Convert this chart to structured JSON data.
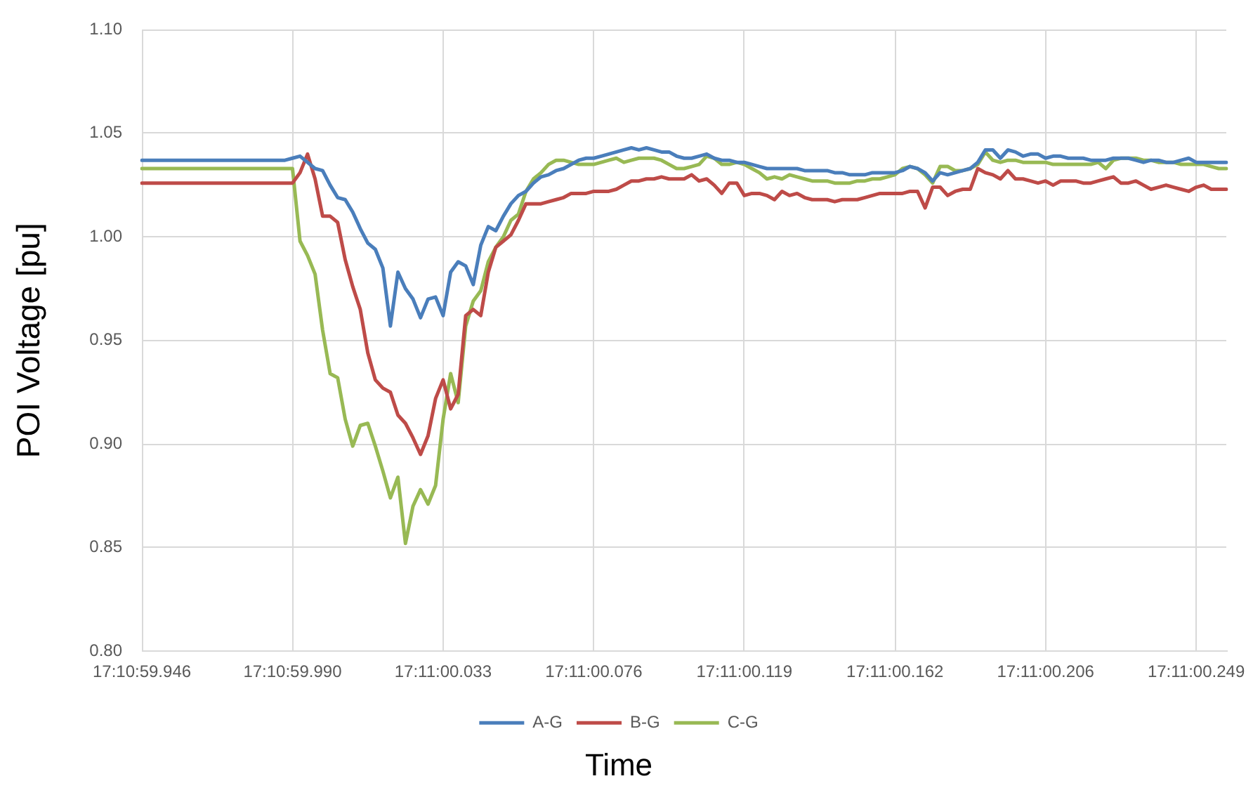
{
  "chart_data": {
    "type": "line",
    "xlabel": "Time",
    "ylabel": "POI Voltage [pu]",
    "categories": [
      "17:10:59.946",
      null,
      null,
      null,
      null,
      null,
      null,
      null,
      null,
      null,
      null,
      null,
      null,
      null,
      null,
      null,
      null,
      null,
      null,
      null,
      "17:10:59.990",
      null,
      null,
      null,
      null,
      null,
      null,
      null,
      null,
      null,
      null,
      null,
      null,
      null,
      null,
      null,
      null,
      null,
      null,
      null,
      "17:11:00.033",
      null,
      null,
      null,
      null,
      null,
      null,
      null,
      null,
      null,
      null,
      null,
      null,
      null,
      null,
      null,
      null,
      null,
      null,
      null,
      "17:11:00.076",
      null,
      null,
      null,
      null,
      null,
      null,
      null,
      null,
      null,
      null,
      null,
      null,
      null,
      null,
      null,
      null,
      null,
      null,
      null,
      "17:11:00.119",
      null,
      null,
      null,
      null,
      null,
      null,
      null,
      null,
      null,
      null,
      null,
      null,
      null,
      null,
      null,
      null,
      null,
      null,
      null,
      "17:11:00.162",
      null,
      null,
      null,
      null,
      null,
      null,
      null,
      null,
      null,
      null,
      null,
      null,
      null,
      null,
      null,
      null,
      null,
      null,
      null,
      "17:11:00.206",
      null,
      null,
      null,
      null,
      null,
      null,
      null,
      null,
      null,
      null,
      null,
      null,
      null,
      null,
      null,
      null,
      null,
      null,
      null,
      "17:11:00.249",
      null,
      null,
      null,
      null
    ],
    "series": [
      {
        "name": "A-G",
        "color": "#4a7ebb",
        "values": [
          1.037,
          1.037,
          1.037,
          1.037,
          1.037,
          1.037,
          1.037,
          1.037,
          1.037,
          1.037,
          1.037,
          1.037,
          1.037,
          1.037,
          1.037,
          1.037,
          1.037,
          1.037,
          1.037,
          1.037,
          1.038,
          1.039,
          1.036,
          1.033,
          1.032,
          1.025,
          1.019,
          1.018,
          1.012,
          1.004,
          0.997,
          0.994,
          0.985,
          0.957,
          0.983,
          0.975,
          0.97,
          0.961,
          0.97,
          0.971,
          0.962,
          0.983,
          0.988,
          0.986,
          0.977,
          0.996,
          1.005,
          1.003,
          1.01,
          1.016,
          1.02,
          1.022,
          1.026,
          1.029,
          1.03,
          1.032,
          1.033,
          1.035,
          1.037,
          1.038,
          1.038,
          1.039,
          1.04,
          1.041,
          1.042,
          1.043,
          1.042,
          1.043,
          1.042,
          1.041,
          1.041,
          1.039,
          1.038,
          1.038,
          1.039,
          1.04,
          1.038,
          1.037,
          1.037,
          1.036,
          1.036,
          1.035,
          1.034,
          1.033,
          1.033,
          1.033,
          1.033,
          1.033,
          1.032,
          1.032,
          1.032,
          1.032,
          1.031,
          1.031,
          1.03,
          1.03,
          1.03,
          1.031,
          1.031,
          1.031,
          1.031,
          1.032,
          1.034,
          1.033,
          1.031,
          1.027,
          1.031,
          1.03,
          1.031,
          1.032,
          1.033,
          1.036,
          1.042,
          1.042,
          1.038,
          1.042,
          1.041,
          1.039,
          1.04,
          1.04,
          1.038,
          1.039,
          1.039,
          1.038,
          1.038,
          1.038,
          1.037,
          1.037,
          1.037,
          1.038,
          1.038,
          1.038,
          1.037,
          1.036,
          1.037,
          1.037,
          1.036,
          1.036,
          1.037,
          1.038,
          1.036,
          1.036,
          1.036,
          1.036,
          1.036
        ]
      },
      {
        "name": "B-G",
        "color": "#be4b48",
        "values": [
          1.026,
          1.026,
          1.026,
          1.026,
          1.026,
          1.026,
          1.026,
          1.026,
          1.026,
          1.026,
          1.026,
          1.026,
          1.026,
          1.026,
          1.026,
          1.026,
          1.026,
          1.026,
          1.026,
          1.026,
          1.026,
          1.031,
          1.04,
          1.028,
          1.01,
          1.01,
          1.007,
          0.989,
          0.976,
          0.965,
          0.944,
          0.931,
          0.927,
          0.925,
          0.914,
          0.91,
          0.903,
          0.895,
          0.904,
          0.922,
          0.931,
          0.917,
          0.924,
          0.962,
          0.965,
          0.962,
          0.983,
          0.995,
          0.998,
          1.001,
          1.008,
          1.016,
          1.016,
          1.016,
          1.017,
          1.018,
          1.019,
          1.021,
          1.021,
          1.021,
          1.022,
          1.022,
          1.022,
          1.023,
          1.025,
          1.027,
          1.027,
          1.028,
          1.028,
          1.029,
          1.028,
          1.028,
          1.028,
          1.03,
          1.027,
          1.028,
          1.025,
          1.021,
          1.026,
          1.026,
          1.02,
          1.021,
          1.021,
          1.02,
          1.018,
          1.022,
          1.02,
          1.021,
          1.019,
          1.018,
          1.018,
          1.018,
          1.017,
          1.018,
          1.018,
          1.018,
          1.019,
          1.02,
          1.021,
          1.021,
          1.021,
          1.021,
          1.022,
          1.022,
          1.014,
          1.024,
          1.024,
          1.02,
          1.022,
          1.023,
          1.023,
          1.033,
          1.031,
          1.03,
          1.028,
          1.032,
          1.028,
          1.028,
          1.027,
          1.026,
          1.027,
          1.025,
          1.027,
          1.027,
          1.027,
          1.026,
          1.026,
          1.027,
          1.028,
          1.029,
          1.026,
          1.026,
          1.027,
          1.025,
          1.023,
          1.024,
          1.025,
          1.024,
          1.023,
          1.022,
          1.024,
          1.025,
          1.023,
          1.023,
          1.023
        ]
      },
      {
        "name": "C-G",
        "color": "#98b954",
        "values": [
          1.033,
          1.033,
          1.033,
          1.033,
          1.033,
          1.033,
          1.033,
          1.033,
          1.033,
          1.033,
          1.033,
          1.033,
          1.033,
          1.033,
          1.033,
          1.033,
          1.033,
          1.033,
          1.033,
          1.033,
          1.033,
          0.998,
          0.991,
          0.982,
          0.955,
          0.934,
          0.932,
          0.912,
          0.899,
          0.909,
          0.91,
          0.899,
          0.887,
          0.874,
          0.884,
          0.852,
          0.87,
          0.878,
          0.871,
          0.88,
          0.912,
          0.934,
          0.92,
          0.957,
          0.969,
          0.974,
          0.988,
          0.995,
          1.0,
          1.008,
          1.011,
          1.022,
          1.028,
          1.031,
          1.035,
          1.037,
          1.037,
          1.036,
          1.035,
          1.035,
          1.035,
          1.036,
          1.037,
          1.038,
          1.036,
          1.037,
          1.038,
          1.038,
          1.038,
          1.037,
          1.035,
          1.033,
          1.033,
          1.034,
          1.035,
          1.039,
          1.038,
          1.035,
          1.035,
          1.036,
          1.035,
          1.033,
          1.031,
          1.028,
          1.029,
          1.028,
          1.03,
          1.029,
          1.028,
          1.027,
          1.027,
          1.027,
          1.026,
          1.026,
          1.026,
          1.027,
          1.027,
          1.028,
          1.028,
          1.029,
          1.03,
          1.033,
          1.034,
          1.033,
          1.03,
          1.026,
          1.034,
          1.034,
          1.032,
          1.032,
          1.033,
          1.035,
          1.041,
          1.037,
          1.036,
          1.037,
          1.037,
          1.036,
          1.036,
          1.036,
          1.036,
          1.035,
          1.035,
          1.035,
          1.035,
          1.035,
          1.035,
          1.036,
          1.033,
          1.037,
          1.038,
          1.038,
          1.038,
          1.037,
          1.037,
          1.036,
          1.036,
          1.036,
          1.035,
          1.035,
          1.035,
          1.035,
          1.034,
          1.033,
          1.033
        ]
      }
    ],
    "ylim": [
      0.8,
      1.1
    ],
    "yticks": [
      {
        "value": 0.8,
        "label": "0.80"
      },
      0.85,
      {
        "value": 0.9,
        "label": "0.90"
      },
      0.95,
      {
        "value": 1,
        "label": "1.00"
      },
      1.05,
      {
        "value": 1.1,
        "label": "1.10"
      }
    ],
    "grid": true,
    "legend": "bottom",
    "marker": "none",
    "line_style": "solid"
  }
}
